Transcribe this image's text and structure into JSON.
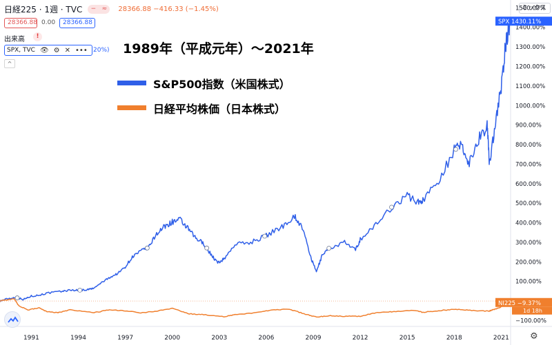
{
  "header": {
    "symbol": "日経225 · 1週 · TVC",
    "toggle_a": "−",
    "toggle_b": "≈",
    "quote": "28366.88  −416.33 (−1.45%)"
  },
  "price_boxes": {
    "red": "28366.88",
    "zero": "0.00",
    "blue": "28366.88"
  },
  "volume_label": "出来高",
  "warning_icon": "!",
  "overlay": {
    "label": "SPX, TVC",
    "suffix": "20%)"
  },
  "collapse_glyph": "^",
  "right_control": "ミックス",
  "annotation": {
    "title": "1989年（平成元年）〜2021年",
    "legend_spx": "S&P500指数（米国株式）",
    "legend_nikkei": "日経平均株価（日本株式）"
  },
  "colors": {
    "spx": "#2f5fe8",
    "nikkei": "#f07f2d",
    "spx_badge": "#2962ff",
    "nikkei_badge": "#f07f2d"
  },
  "icons": {
    "logo": "tradingview-logo-icon",
    "settings": "gear-icon"
  },
  "chart_data": {
    "type": "line",
    "y_unit": "%",
    "ylim": [
      -130,
      1540
    ],
    "xlim": [
      1989.0,
      2021.6
    ],
    "y_ticks": [
      -100,
      0,
      100,
      200,
      300,
      400,
      500,
      600,
      700,
      800,
      900,
      1000,
      1100,
      1200,
      1300,
      1400,
      1500
    ],
    "y_tick_labels": [
      "−100.00%",
      "0.00%",
      "100.00%",
      "200.00%",
      "300.00%",
      "400.00%",
      "500.00%",
      "600.00%",
      "700.00%",
      "800.00%",
      "900.00%",
      "1000.00%",
      "1100.00%",
      "1200.00%",
      "1300.00%",
      "1400.00%",
      "1500.00%"
    ],
    "x_ticks": [
      1991,
      1994,
      1997,
      2000,
      2003,
      2006,
      2009,
      2012,
      2015,
      2018,
      2021
    ],
    "x_tick_labels": [
      "1991",
      "1994",
      "1997",
      "2000",
      "2003",
      "2006",
      "2009",
      "2012",
      "2015",
      "2018",
      "2021"
    ],
    "grid": false,
    "series": [
      {
        "name": "SPX",
        "badge": "SPX",
        "last_label": "1430.11%",
        "points": [
          [
            1989.0,
            0
          ],
          [
            1989.5,
            12
          ],
          [
            1990.0,
            18
          ],
          [
            1990.5,
            8
          ],
          [
            1991.0,
            25
          ],
          [
            1991.5,
            30
          ],
          [
            1992.0,
            40
          ],
          [
            1993.0,
            50
          ],
          [
            1993.5,
            56
          ],
          [
            1994.0,
            55
          ],
          [
            1994.5,
            57
          ],
          [
            1995.0,
            65
          ],
          [
            1995.5,
            95
          ],
          [
            1996.0,
            120
          ],
          [
            1996.5,
            140
          ],
          [
            1997.0,
            175
          ],
          [
            1997.5,
            230
          ],
          [
            1998.0,
            255
          ],
          [
            1998.5,
            275
          ],
          [
            1999.0,
            345
          ],
          [
            1999.5,
            380
          ],
          [
            2000.0,
            405
          ],
          [
            2000.5,
            415
          ],
          [
            2001.0,
            370
          ],
          [
            2001.5,
            320
          ],
          [
            2002.0,
            295
          ],
          [
            2002.5,
            235
          ],
          [
            2002.9,
            195
          ],
          [
            2003.3,
            215
          ],
          [
            2004.0,
            290
          ],
          [
            2005.0,
            300
          ],
          [
            2006.0,
            335
          ],
          [
            2007.0,
            380
          ],
          [
            2007.8,
            435
          ],
          [
            2008.3,
            375
          ],
          [
            2008.9,
            210
          ],
          [
            2009.2,
            150
          ],
          [
            2009.6,
            240
          ],
          [
            2010.0,
            270
          ],
          [
            2011.0,
            300
          ],
          [
            2011.7,
            260
          ],
          [
            2012.0,
            315
          ],
          [
            2013.0,
            390
          ],
          [
            2014.0,
            480
          ],
          [
            2015.0,
            540
          ],
          [
            2015.7,
            505
          ],
          [
            2016.0,
            515
          ],
          [
            2017.0,
            620
          ],
          [
            2018.0,
            770
          ],
          [
            2018.5,
            800
          ],
          [
            2018.9,
            700
          ],
          [
            2019.5,
            820
          ],
          [
            2020.1,
            900
          ],
          [
            2020.25,
            700
          ],
          [
            2020.6,
            900
          ],
          [
            2021.0,
            1090
          ],
          [
            2021.3,
            1320
          ],
          [
            2021.6,
            1430
          ]
        ]
      },
      {
        "name": "NI225",
        "badge": "NI225",
        "last_label": "−9.37%",
        "countdown": "1d 18h",
        "points": [
          [
            1989.0,
            0
          ],
          [
            1989.9,
            12
          ],
          [
            1990.2,
            -25
          ],
          [
            1990.8,
            -45
          ],
          [
            1991.5,
            -35
          ],
          [
            1992.0,
            -55
          ],
          [
            1992.7,
            -60
          ],
          [
            1993.5,
            -45
          ],
          [
            1995.0,
            -60
          ],
          [
            1996.0,
            -45
          ],
          [
            1997.0,
            -50
          ],
          [
            1998.0,
            -60
          ],
          [
            1999.0,
            -52
          ],
          [
            2000.0,
            -38
          ],
          [
            2001.0,
            -65
          ],
          [
            2002.0,
            -70
          ],
          [
            2003.3,
            -80
          ],
          [
            2004.0,
            -70
          ],
          [
            2005.5,
            -58
          ],
          [
            2006.5,
            -45
          ],
          [
            2007.5,
            -42
          ],
          [
            2008.5,
            -68
          ],
          [
            2009.2,
            -82
          ],
          [
            2010.0,
            -75
          ],
          [
            2011.0,
            -78
          ],
          [
            2012.0,
            -78
          ],
          [
            2013.0,
            -60
          ],
          [
            2014.0,
            -55
          ],
          [
            2015.4,
            -48
          ],
          [
            2016.0,
            -58
          ],
          [
            2017.0,
            -50
          ],
          [
            2018.0,
            -42
          ],
          [
            2019.0,
            -48
          ],
          [
            2020.2,
            -52
          ],
          [
            2020.5,
            -45
          ],
          [
            2021.0,
            -30
          ],
          [
            2021.6,
            -9.37
          ]
        ]
      }
    ]
  }
}
